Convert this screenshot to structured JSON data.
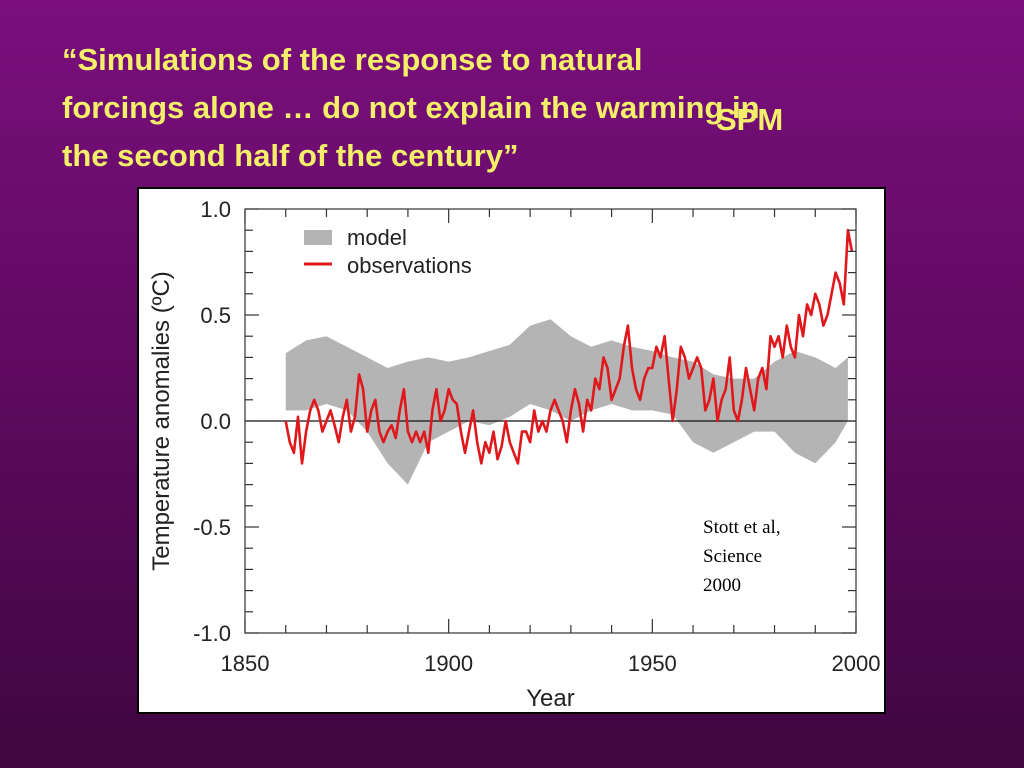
{
  "title": {
    "lines": [
      "“Simulations of the response to natural",
      "forcings alone … do not explain the warming in",
      "the second half of the century”"
    ],
    "tag": "SPM"
  },
  "citation": [
    "Stott et al,",
    "Science",
    "2000"
  ],
  "colors": {
    "model": "#b4b4b4",
    "observations": "#e0181c",
    "title": "#f4ef6a"
  },
  "chart_data": {
    "type": "line",
    "xlabel": "Year",
    "ylabel": "Temperature anomalies (ºC)",
    "xlim": [
      1850,
      2000
    ],
    "ylim": [
      -1.0,
      1.0
    ],
    "x_ticks": [
      1850,
      1900,
      1950,
      2000
    ],
    "y_ticks": [
      {
        "value": 1.0,
        "label": "1.0"
      },
      {
        "value": 0.5,
        "label": "0.5"
      },
      {
        "value": 0.0,
        "label": "0.0"
      },
      {
        "value": -0.5,
        "label": "-0.5"
      },
      {
        "value": -1.0,
        "label": "-1.0"
      }
    ],
    "legend": {
      "position": "top-left",
      "entries": [
        "model",
        "observations"
      ]
    },
    "series": [
      {
        "name": "model",
        "style": "band",
        "x": [
          1860,
          1865,
          1870,
          1875,
          1880,
          1885,
          1890,
          1895,
          1900,
          1905,
          1910,
          1915,
          1920,
          1925,
          1930,
          1935,
          1940,
          1945,
          1950,
          1955,
          1960,
          1965,
          1970,
          1975,
          1980,
          1985,
          1990,
          1995,
          1998
        ],
        "upper": [
          0.32,
          0.38,
          0.4,
          0.35,
          0.3,
          0.25,
          0.28,
          0.3,
          0.28,
          0.3,
          0.33,
          0.36,
          0.45,
          0.48,
          0.4,
          0.35,
          0.38,
          0.35,
          0.33,
          0.3,
          0.28,
          0.22,
          0.2,
          0.2,
          0.28,
          0.33,
          0.3,
          0.25,
          0.3
        ],
        "lower": [
          0.05,
          0.05,
          0.08,
          0.05,
          -0.05,
          -0.2,
          -0.3,
          -0.1,
          -0.05,
          0.0,
          -0.02,
          0.02,
          0.08,
          0.05,
          0.0,
          0.05,
          0.08,
          0.05,
          0.05,
          0.03,
          -0.1,
          -0.15,
          -0.1,
          -0.05,
          -0.05,
          -0.15,
          -0.2,
          -0.1,
          0.0
        ]
      },
      {
        "name": "observations",
        "style": "line",
        "x": [
          1860,
          1861,
          1862,
          1863,
          1864,
          1865,
          1866,
          1867,
          1868,
          1869,
          1870,
          1871,
          1872,
          1873,
          1874,
          1875,
          1876,
          1877,
          1878,
          1879,
          1880,
          1881,
          1882,
          1883,
          1884,
          1885,
          1886,
          1887,
          1888,
          1889,
          1890,
          1891,
          1892,
          1893,
          1894,
          1895,
          1896,
          1897,
          1898,
          1899,
          1900,
          1901,
          1902,
          1903,
          1904,
          1905,
          1906,
          1907,
          1908,
          1909,
          1910,
          1911,
          1912,
          1913,
          1914,
          1915,
          1916,
          1917,
          1918,
          1919,
          1920,
          1921,
          1922,
          1923,
          1924,
          1925,
          1926,
          1927,
          1928,
          1929,
          1930,
          1931,
          1932,
          1933,
          1934,
          1935,
          1936,
          1937,
          1938,
          1939,
          1940,
          1941,
          1942,
          1943,
          1944,
          1945,
          1946,
          1947,
          1948,
          1949,
          1950,
          1951,
          1952,
          1953,
          1954,
          1955,
          1956,
          1957,
          1958,
          1959,
          1960,
          1961,
          1962,
          1963,
          1964,
          1965,
          1966,
          1967,
          1968,
          1969,
          1970,
          1971,
          1972,
          1973,
          1974,
          1975,
          1976,
          1977,
          1978,
          1979,
          1980,
          1981,
          1982,
          1983,
          1984,
          1985,
          1986,
          1987,
          1988,
          1989,
          1990,
          1991,
          1992,
          1993,
          1994,
          1995,
          1996,
          1997,
          1998,
          1999
        ],
        "y": [
          0.0,
          -0.1,
          -0.15,
          0.02,
          -0.2,
          -0.05,
          0.05,
          0.1,
          0.05,
          -0.05,
          0.0,
          0.05,
          -0.02,
          -0.1,
          0.02,
          0.1,
          -0.05,
          0.02,
          0.22,
          0.15,
          -0.05,
          0.05,
          0.1,
          -0.05,
          -0.1,
          -0.05,
          -0.02,
          -0.08,
          0.05,
          0.15,
          -0.05,
          -0.1,
          -0.05,
          -0.1,
          -0.05,
          -0.15,
          0.05,
          0.15,
          0.0,
          0.05,
          0.15,
          0.1,
          0.08,
          -0.05,
          -0.15,
          -0.05,
          0.05,
          -0.1,
          -0.2,
          -0.1,
          -0.15,
          -0.05,
          -0.18,
          -0.12,
          0.0,
          -0.1,
          -0.15,
          -0.2,
          -0.05,
          -0.05,
          -0.1,
          0.05,
          -0.05,
          0.0,
          -0.05,
          0.05,
          0.1,
          0.05,
          0.0,
          -0.1,
          0.05,
          0.15,
          0.08,
          -0.05,
          0.1,
          0.05,
          0.2,
          0.15,
          0.3,
          0.25,
          0.1,
          0.15,
          0.2,
          0.35,
          0.45,
          0.25,
          0.15,
          0.1,
          0.2,
          0.25,
          0.25,
          0.35,
          0.3,
          0.4,
          0.2,
          0.0,
          0.15,
          0.35,
          0.3,
          0.2,
          0.25,
          0.3,
          0.25,
          0.05,
          0.1,
          0.2,
          0.0,
          0.1,
          0.15,
          0.3,
          0.05,
          0.0,
          0.1,
          0.25,
          0.15,
          0.05,
          0.2,
          0.25,
          0.15,
          0.4,
          0.35,
          0.4,
          0.3,
          0.45,
          0.35,
          0.3,
          0.5,
          0.4,
          0.55,
          0.5,
          0.6,
          0.55,
          0.45,
          0.5,
          0.6,
          0.7,
          0.65,
          0.55,
          0.9,
          0.8
        ]
      }
    ]
  }
}
